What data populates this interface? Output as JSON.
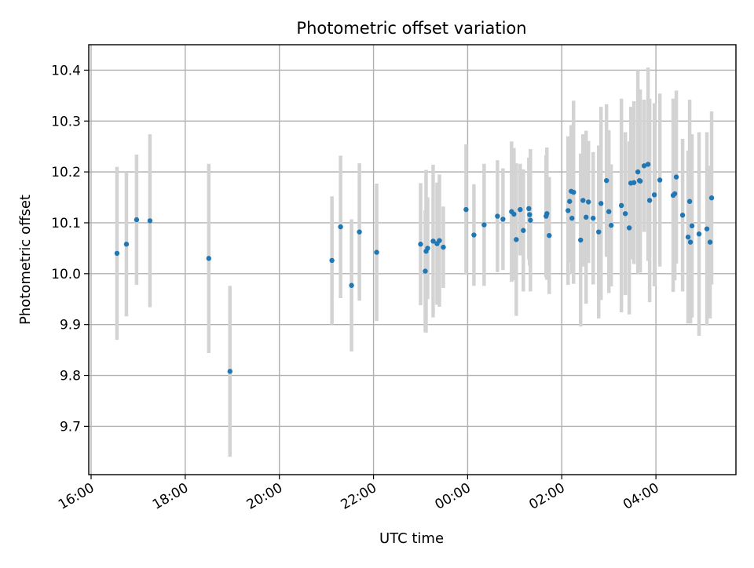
{
  "chart_data": {
    "type": "scatter",
    "title": "Photometric offset variation",
    "xlabel": "UTC time",
    "ylabel": "Photometric offset",
    "x_ticks": [
      "16:00",
      "18:00",
      "20:00",
      "22:00",
      "00:00",
      "02:00",
      "04:00"
    ],
    "y_ticks": [
      "9.7",
      "9.8",
      "9.9",
      "10.0",
      "10.1",
      "10.2",
      "10.3",
      "10.4"
    ],
    "xlim": [
      "15:57",
      "05:42"
    ],
    "ylim": [
      9.605,
      10.45
    ],
    "grid": true,
    "colors": {
      "point": "#1f77b4",
      "errorbar": "#d3d3d3",
      "grid": "#b0b0b0"
    },
    "series": [
      {
        "x": [
          "16:33",
          "16:45",
          "16:58",
          "17:15",
          "18:30",
          "18:57",
          "21:07",
          "21:18",
          "21:32",
          "21:42",
          "22:04",
          "23:06",
          "23:07",
          "23:09",
          "23:16",
          "23:21",
          "23:24",
          "23:29",
          "23:00",
          "23:58",
          "00:08",
          "00:21",
          "00:38",
          "00:45",
          "00:56",
          "00:59",
          "01:02",
          "01:07",
          "01:11",
          "01:18",
          "01:19",
          "01:20",
          "01:40",
          "01:41",
          "01:44",
          "02:08",
          "02:10",
          "02:12",
          "02:13",
          "02:15",
          "02:24",
          "02:27",
          "02:31",
          "02:34",
          "02:40",
          "02:47",
          "02:50",
          "02:57",
          "03:00",
          "03:03",
          "03:16",
          "03:21",
          "03:26",
          "03:28",
          "03:32",
          "03:37",
          "03:39",
          "03:40",
          "03:45",
          "03:50",
          "03:52",
          "03:58",
          "04:05",
          "04:22",
          "04:24",
          "04:26",
          "04:34",
          "04:41",
          "04:43",
          "04:44",
          "04:46",
          "04:55",
          "05:05",
          "05:09",
          "05:11"
        ],
        "y": [
          10.04,
          10.058,
          10.106,
          10.104,
          10.03,
          9.808,
          10.026,
          10.092,
          9.977,
          10.082,
          10.042,
          10.005,
          10.044,
          10.05,
          10.064,
          10.059,
          10.065,
          10.052,
          10.058,
          10.126,
          10.076,
          10.096,
          10.113,
          10.107,
          10.122,
          10.117,
          10.067,
          10.126,
          10.085,
          10.128,
          10.116,
          10.105,
          10.113,
          10.118,
          10.075,
          10.124,
          10.142,
          10.162,
          10.109,
          10.16,
          10.066,
          10.144,
          10.111,
          10.141,
          10.109,
          10.082,
          10.138,
          10.183,
          10.122,
          10.095,
          10.134,
          10.118,
          10.09,
          10.178,
          10.179,
          10.2,
          10.183,
          10.182,
          10.212,
          10.215,
          10.144,
          10.155,
          10.184,
          10.154,
          10.157,
          10.19,
          10.115,
          10.072,
          10.142,
          10.062,
          10.094,
          10.078,
          10.088,
          10.062,
          10.149
        ],
        "yerr": [
          0.17,
          0.142,
          0.128,
          0.17,
          0.186,
          0.168,
          0.126,
          0.14,
          0.13,
          0.135,
          0.135,
          0.12,
          0.16,
          0.1,
          0.15,
          0.12,
          0.13,
          0.08,
          0.12,
          0.128,
          0.1,
          0.12,
          0.11,
          0.1,
          0.138,
          0.13,
          0.15,
          0.09,
          0.12,
          0.1,
          0.1,
          0.14,
          0.12,
          0.13,
          0.115,
          0.146,
          0.12,
          0.13,
          0.11,
          0.18,
          0.17,
          0.13,
          0.17,
          0.12,
          0.13,
          0.17,
          0.19,
          0.15,
          0.16,
          0.12,
          0.21,
          0.16,
          0.17,
          0.15,
          0.16,
          0.2,
          0.17,
          0.18,
          0.13,
          0.19,
          0.2,
          0.18,
          0.17,
          0.19,
          0.17,
          0.17,
          0.15,
          0.17,
          0.2,
          0.16,
          0.18,
          0.2,
          0.19,
          0.15,
          0.17
        ]
      }
    ]
  }
}
